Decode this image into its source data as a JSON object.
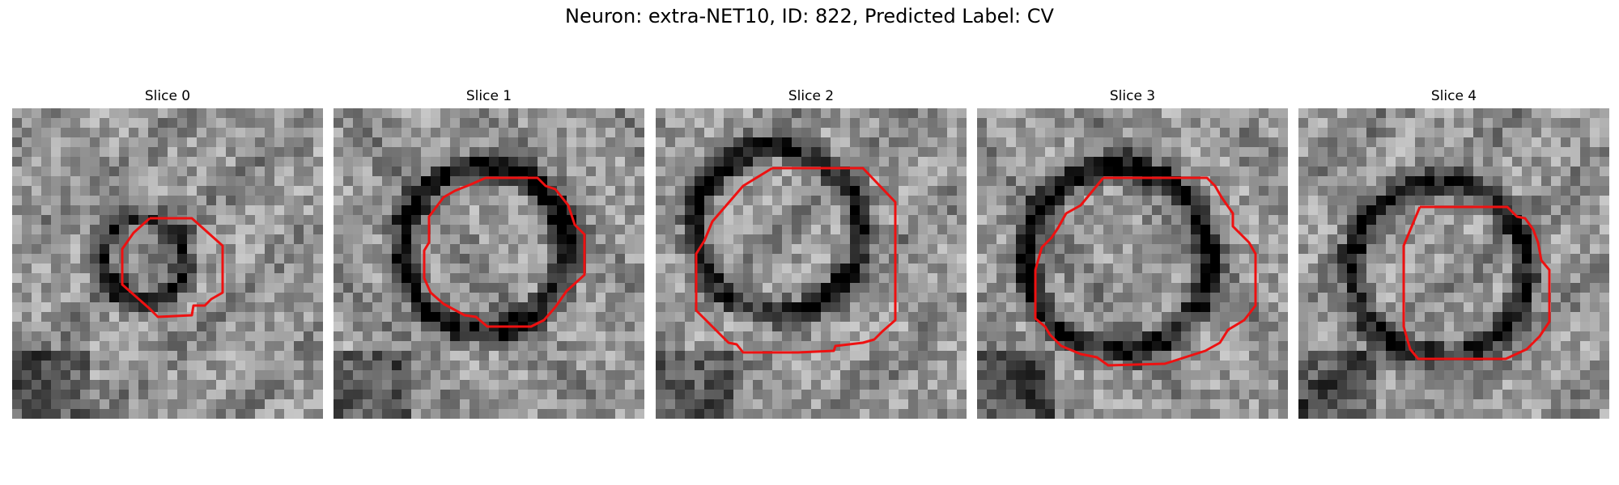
{
  "figure": {
    "title": "Neuron: extra-NET10, ID: 822, Predicted Label: CV",
    "contour_color": "#ee1111",
    "colormap": "grayscale"
  },
  "slices": [
    {
      "label": "Slice 0"
    },
    {
      "label": "Slice 1"
    },
    {
      "label": "Slice 2"
    },
    {
      "label": "Slice 3"
    },
    {
      "label": "Slice 4"
    }
  ]
}
